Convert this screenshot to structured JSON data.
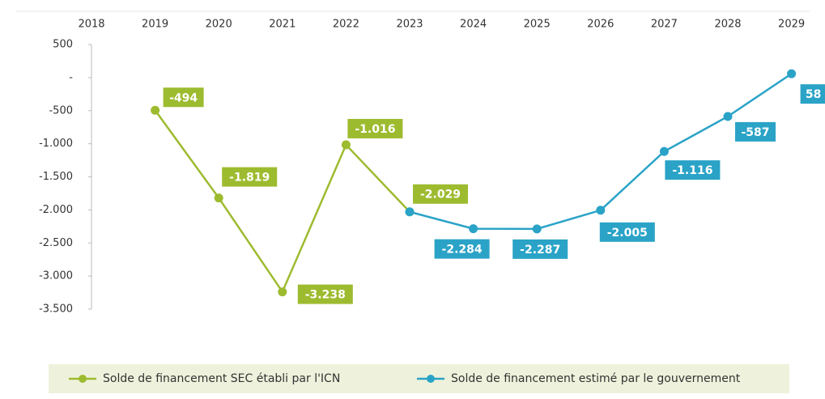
{
  "chart_data": {
    "type": "line",
    "categories": [
      "2018",
      "2019",
      "2020",
      "2021",
      "2022",
      "2023",
      "2024",
      "2025",
      "2026",
      "2027",
      "2028",
      "2029"
    ],
    "series": [
      {
        "name": "Solde de financement SEC  établi par l'ICN",
        "color": "#9dbb2f",
        "values": [
          null,
          -494,
          -1819,
          -3238,
          -1016,
          -2029,
          null,
          null,
          null,
          null,
          null,
          null
        ],
        "value_labels": [
          null,
          "-494",
          "-1.819",
          "-3.238",
          "-1.016",
          "-2.029",
          null,
          null,
          null,
          null,
          null,
          null
        ]
      },
      {
        "name": "Solde de financement estimé par le gouvernement",
        "color": "#2aa3c7",
        "values": [
          null,
          null,
          null,
          null,
          null,
          -2029,
          -2284,
          -2287,
          -2005,
          -1116,
          -587,
          58
        ],
        "value_labels": [
          null,
          null,
          null,
          null,
          null,
          null,
          "-2.284",
          "-2.287",
          "-2.005",
          "-1.116",
          "-587",
          "58"
        ]
      }
    ],
    "ylim": [
      -3500,
      500
    ],
    "yticks": [
      500,
      {
        "value": 0,
        "label": "-"
      },
      -500,
      {
        "value": -1000,
        "label": "-1.000"
      },
      {
        "value": -1500,
        "label": "-1.500"
      },
      {
        "value": -2000,
        "label": "-2.000"
      },
      {
        "value": -2500,
        "label": "-2.500"
      },
      {
        "value": -3000,
        "label": "-3.000"
      },
      {
        "value": -3500,
        "label": "-3.500"
      }
    ],
    "legend": "bottom"
  }
}
